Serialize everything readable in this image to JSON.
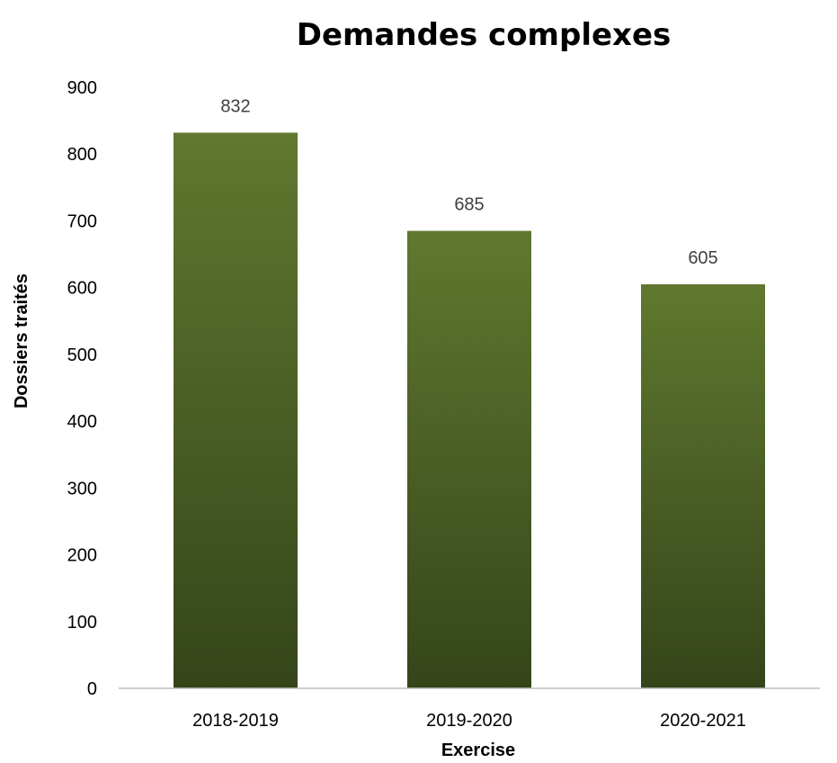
{
  "chart_data": {
    "type": "bar",
    "title": "Demandes complexes",
    "xlabel": "Exercise",
    "ylabel": "Dossiers traités",
    "categories": [
      "2018-2019",
      "2019-2020",
      "2020-2021"
    ],
    "values": [
      832,
      685,
      605
    ],
    "data_labels": [
      "832",
      "685",
      "605"
    ],
    "ylim": [
      0,
      900
    ],
    "yticks": [
      0,
      100,
      200,
      300,
      400,
      500,
      600,
      700,
      800,
      900
    ],
    "grid": false,
    "legend": "none",
    "colors": {
      "bar_top": "#60782f",
      "bar_bottom": "#35451a",
      "axis": "#bfbfbf"
    }
  }
}
